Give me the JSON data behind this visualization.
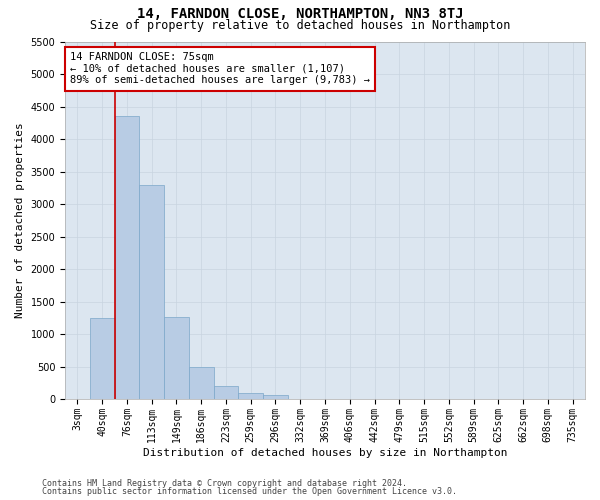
{
  "title": "14, FARNDON CLOSE, NORTHAMPTON, NN3 8TJ",
  "subtitle": "Size of property relative to detached houses in Northampton",
  "xlabel": "Distribution of detached houses by size in Northampton",
  "ylabel": "Number of detached properties",
  "footer_line1": "Contains HM Land Registry data © Crown copyright and database right 2024.",
  "footer_line2": "Contains public sector information licensed under the Open Government Licence v3.0.",
  "categories": [
    "3sqm",
    "40sqm",
    "76sqm",
    "113sqm",
    "149sqm",
    "186sqm",
    "223sqm",
    "259sqm",
    "296sqm",
    "332sqm",
    "369sqm",
    "406sqm",
    "442sqm",
    "479sqm",
    "515sqm",
    "552sqm",
    "589sqm",
    "625sqm",
    "662sqm",
    "698sqm",
    "735sqm"
  ],
  "values": [
    0,
    1250,
    4350,
    3300,
    1260,
    490,
    200,
    100,
    70,
    0,
    0,
    0,
    0,
    0,
    0,
    0,
    0,
    0,
    0,
    0,
    0
  ],
  "bar_color": "#b8cce4",
  "bar_edge_color": "#7ba7c9",
  "vline_color": "#cc0000",
  "vline_x": 1.5,
  "annotation_text": "14 FARNDON CLOSE: 75sqm\n← 10% of detached houses are smaller (1,107)\n89% of semi-detached houses are larger (9,783) →",
  "annotation_box_color": "#ffffff",
  "annotation_box_edge_color": "#cc0000",
  "ylim": [
    0,
    5500
  ],
  "yticks": [
    0,
    500,
    1000,
    1500,
    2000,
    2500,
    3000,
    3500,
    4000,
    4500,
    5000,
    5500
  ],
  "grid_color": "#c8d4e0",
  "bg_color": "#dce6f0",
  "title_fontsize": 10,
  "subtitle_fontsize": 8.5,
  "xlabel_fontsize": 8,
  "ylabel_fontsize": 8,
  "tick_fontsize": 7,
  "annotation_fontsize": 7.5,
  "footer_fontsize": 6
}
